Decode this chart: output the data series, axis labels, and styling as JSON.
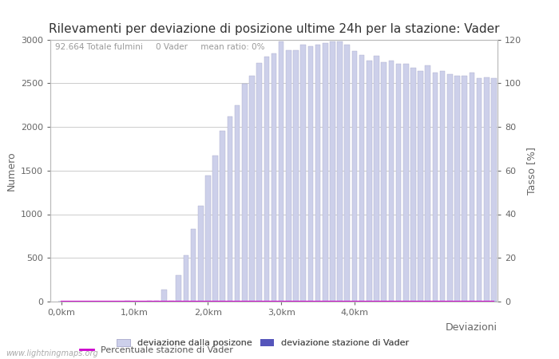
{
  "title": "Rilevamenti per deviazione di posizione ultime 24h per la stazione: Vader",
  "xlabel": "Deviazioni",
  "ylabel_left": "Numero",
  "ylabel_right": "Tasso [%]",
  "annotation": "92.664 Totale fulmini     0 Vader     mean ratio: 0%",
  "bar_color_light": "#cdd0ea",
  "bar_color_dark": "#5555bb",
  "bar_edge_color": "#aaaacc",
  "line_color": "#cc00cc",
  "ylim_left": [
    0,
    3000
  ],
  "ylim_right": [
    0,
    120
  ],
  "yticks_left": [
    0,
    500,
    1000,
    1500,
    2000,
    2500,
    3000
  ],
  "yticks_right": [
    0,
    20,
    40,
    60,
    80,
    100,
    120
  ],
  "background_color": "#ffffff",
  "grid_color": "#cccccc",
  "watermark": "www.lightningmaps.org",
  "title_fontsize": 11,
  "axis_fontsize": 9,
  "tick_fontsize": 8,
  "bar_values": [
    2,
    1,
    1,
    1,
    1,
    2,
    1,
    2,
    3,
    5,
    3,
    4,
    5,
    8,
    140,
    10,
    300,
    530,
    830,
    1100,
    1440,
    1670,
    1950,
    2120,
    2250,
    2490,
    2580,
    2730,
    2800,
    2840,
    2980,
    2880,
    2880,
    2940,
    2920,
    2940,
    2960,
    2980,
    2980,
    2940,
    2870,
    2820,
    2760,
    2810,
    2740,
    2760,
    2720,
    2720,
    2680,
    2640,
    2700,
    2620,
    2640,
    2600,
    2580,
    2580,
    2620,
    2560,
    2570,
    2560
  ],
  "vader_values": [
    0,
    0,
    0,
    0,
    0,
    0,
    0,
    0,
    0,
    0,
    0,
    0,
    0,
    0,
    0,
    0,
    0,
    0,
    0,
    0,
    0,
    0,
    0,
    0,
    0,
    0,
    0,
    0,
    0,
    0,
    0,
    0,
    0,
    0,
    0,
    0,
    0,
    0,
    0,
    0,
    0,
    0,
    0,
    0,
    0,
    0,
    0,
    0,
    0,
    0,
    0,
    0,
    0,
    0,
    0,
    0,
    0,
    0,
    0,
    0
  ],
  "n_bars": 60,
  "km_per_bar": 0.1,
  "x_tick_km": [
    0,
    1,
    2,
    3,
    4
  ],
  "x_tick_labels": [
    "0,0km",
    "1,0km",
    "2,0km",
    "3,0km",
    "4,0km"
  ],
  "legend_label_light": "deviazione dalla posizone",
  "legend_label_dark": "deviazione stazione di Vader",
  "legend_label_line": "Percentuale stazione di Vader"
}
